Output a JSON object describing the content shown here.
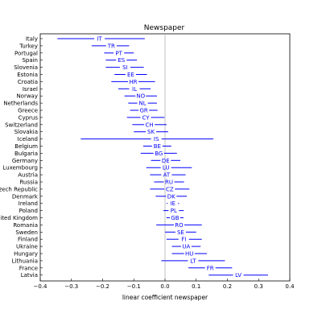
{
  "chart_data": {
    "type": "interval",
    "title": "Newspaper",
    "xlabel": "linear coefficient newspaper",
    "ylabel": "",
    "xlim": [
      -0.4,
      0.4
    ],
    "x_ticks": [
      "-0.4",
      "-0.3",
      "-0.2",
      "-0.1",
      "0.0",
      "0.1",
      "0.2",
      "0.3",
      "0.4"
    ],
    "reference_line_x": 0.0,
    "grid": false,
    "series_color": "#0000ff",
    "rows": [
      {
        "country": "Italy",
        "code": "IT",
        "estimate": -0.21,
        "low": -0.345,
        "high": -0.065
      },
      {
        "country": "Turkey",
        "code": "TR",
        "estimate": -0.172,
        "low": -0.235,
        "high": -0.115
      },
      {
        "country": "Portugal",
        "code": "PT",
        "estimate": -0.148,
        "low": -0.195,
        "high": -0.1
      },
      {
        "country": "Spain",
        "code": "ES",
        "estimate": -0.14,
        "low": -0.19,
        "high": -0.09
      },
      {
        "country": "Slovenia",
        "code": "SI",
        "estimate": -0.128,
        "low": -0.19,
        "high": -0.068
      },
      {
        "country": "Estonia",
        "code": "EE",
        "estimate": -0.11,
        "low": -0.162,
        "high": -0.058
      },
      {
        "country": "Croatia",
        "code": "HR",
        "estimate": -0.102,
        "low": -0.172,
        "high": -0.032
      },
      {
        "country": "Israel",
        "code": "IL",
        "estimate": -0.098,
        "low": -0.15,
        "high": -0.046
      },
      {
        "country": "Norway",
        "code": "NO",
        "estimate": -0.078,
        "low": -0.13,
        "high": -0.026
      },
      {
        "country": "Netherlands",
        "code": "NL",
        "estimate": -0.072,
        "low": -0.118,
        "high": -0.026
      },
      {
        "country": "Greece",
        "code": "GR",
        "estimate": -0.068,
        "low": -0.112,
        "high": -0.024
      },
      {
        "country": "Cyprus",
        "code": "CY",
        "estimate": -0.062,
        "low": -0.122,
        "high": -0.002
      },
      {
        "country": "Switzerland",
        "code": "CH",
        "estimate": -0.05,
        "low": -0.105,
        "high": 0.005
      },
      {
        "country": "Slovakia",
        "code": "SK",
        "estimate": -0.045,
        "low": -0.1,
        "high": 0.01
      },
      {
        "country": "Iceland",
        "code": "IS",
        "estimate": -0.028,
        "low": -0.27,
        "high": 0.155
      },
      {
        "country": "Belgium",
        "code": "BE",
        "estimate": -0.025,
        "low": -0.07,
        "high": 0.02
      },
      {
        "country": "Bulgaria",
        "code": "BG",
        "estimate": -0.02,
        "low": -0.078,
        "high": 0.038
      },
      {
        "country": "Germany",
        "code": "DE",
        "estimate": 0.002,
        "low": -0.045,
        "high": 0.049
      },
      {
        "country": "Luxembourg",
        "code": "LU",
        "estimate": 0.003,
        "low": -0.06,
        "high": 0.086
      },
      {
        "country": "Austria",
        "code": "AT",
        "estimate": 0.005,
        "low": -0.048,
        "high": 0.066
      },
      {
        "country": "Russia",
        "code": "RU",
        "estimate": 0.013,
        "low": -0.035,
        "high": 0.061
      },
      {
        "country": "Czech Republic",
        "code": "CZ",
        "estimate": 0.015,
        "low": -0.048,
        "high": 0.078
      },
      {
        "country": "Denmark",
        "code": "DK",
        "estimate": 0.02,
        "low": -0.03,
        "high": 0.07
      },
      {
        "country": "Ireland",
        "code": "IE",
        "estimate": 0.025,
        "low": 0.005,
        "high": 0.045
      },
      {
        "country": "Poland",
        "code": "PL",
        "estimate": 0.028,
        "low": -0.005,
        "high": 0.06
      },
      {
        "country": "United Kingdom",
        "code": "GB",
        "estimate": 0.032,
        "low": 0.005,
        "high": 0.059
      },
      {
        "country": "Romania",
        "code": "RO",
        "estimate": 0.045,
        "low": -0.028,
        "high": 0.118
      },
      {
        "country": "Sweden",
        "code": "SE",
        "estimate": 0.05,
        "low": 0.0,
        "high": 0.1
      },
      {
        "country": "Finland",
        "code": "FI",
        "estimate": 0.06,
        "low": 0.005,
        "high": 0.118
      },
      {
        "country": "Ukraine",
        "code": "UA",
        "estimate": 0.068,
        "low": 0.022,
        "high": 0.114
      },
      {
        "country": "Hungary",
        "code": "HU",
        "estimate": 0.078,
        "low": 0.022,
        "high": 0.134
      },
      {
        "country": "Lithuania",
        "code": "LT",
        "estimate": 0.09,
        "low": -0.012,
        "high": 0.192
      },
      {
        "country": "France",
        "code": "FR",
        "estimate": 0.145,
        "low": 0.075,
        "high": 0.215
      },
      {
        "country": "Latvia",
        "code": "LV",
        "estimate": 0.235,
        "low": 0.14,
        "high": 0.33
      }
    ]
  }
}
